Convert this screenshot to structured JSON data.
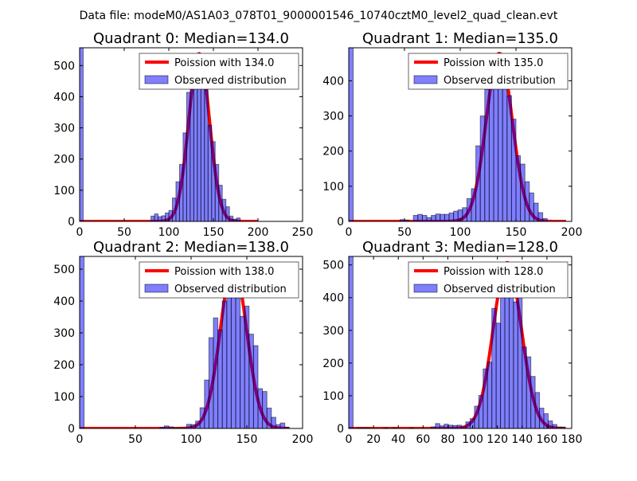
{
  "suptitle": "Data file: modeM0/AS1A03_078T01_9000001546_10740cztM0_level2_quad_clean.evt",
  "colors": {
    "bars": "#0000ff",
    "curve": "#ff0000"
  },
  "chart_data": [
    {
      "type": "bar",
      "title": "Quadrant 0: Median=134.0",
      "legend": [
        "Poission with 134.0",
        "Observed distribution"
      ],
      "legend_position": "top-right",
      "xlim": [
        0,
        250
      ],
      "ylim": [
        0,
        557
      ],
      "xticks": [
        0,
        50,
        100,
        150,
        200,
        250
      ],
      "yticks": [
        0,
        100,
        200,
        300,
        400,
        500
      ],
      "bin_width": 4,
      "bins": [
        [
          0,
          557
        ],
        [
          80,
          17
        ],
        [
          84,
          24
        ],
        [
          88,
          15
        ],
        [
          92,
          18
        ],
        [
          96,
          27
        ],
        [
          100,
          35
        ],
        [
          104,
          75
        ],
        [
          108,
          127
        ],
        [
          112,
          183
        ],
        [
          116,
          284
        ],
        [
          120,
          414
        ],
        [
          124,
          457
        ],
        [
          128,
          474
        ],
        [
          132,
          491
        ],
        [
          136,
          460
        ],
        [
          140,
          422
        ],
        [
          144,
          309
        ],
        [
          148,
          256
        ],
        [
          152,
          183
        ],
        [
          156,
          116
        ],
        [
          160,
          71
        ],
        [
          164,
          47
        ],
        [
          168,
          17
        ],
        [
          172,
          7
        ],
        [
          176,
          11
        ]
      ],
      "poisson": {
        "lambda": 134.0,
        "peak": 538,
        "x_range": [
          0,
          200
        ]
      }
    },
    {
      "type": "bar",
      "title": "Quadrant 1: Median=135.0",
      "legend": [
        "Poission with 135.0",
        "Observed distribution"
      ],
      "legend_position": "top-right",
      "xlim": [
        0,
        200
      ],
      "ylim": [
        0,
        494
      ],
      "xticks": [
        0,
        50,
        100,
        150,
        200
      ],
      "yticks": [
        0,
        100,
        200,
        300,
        400
      ],
      "bin_width": 4,
      "bins": [
        [
          0,
          494
        ],
        [
          46,
          5
        ],
        [
          50,
          4
        ],
        [
          58,
          17
        ],
        [
          62,
          20
        ],
        [
          66,
          17
        ],
        [
          70,
          11
        ],
        [
          74,
          17
        ],
        [
          78,
          21
        ],
        [
          82,
          20
        ],
        [
          86,
          20
        ],
        [
          90,
          24
        ],
        [
          94,
          29
        ],
        [
          98,
          33
        ],
        [
          102,
          39
        ],
        [
          106,
          65
        ],
        [
          110,
          93
        ],
        [
          114,
          215
        ],
        [
          118,
          300
        ],
        [
          122,
          375
        ],
        [
          126,
          440
        ],
        [
          130,
          470
        ],
        [
          134,
          478
        ],
        [
          138,
          440
        ],
        [
          142,
          358
        ],
        [
          146,
          291
        ],
        [
          150,
          187
        ],
        [
          154,
          163
        ],
        [
          158,
          113
        ],
        [
          162,
          81
        ],
        [
          166,
          52
        ],
        [
          170,
          25
        ],
        [
          174,
          8
        ]
      ],
      "poisson": {
        "lambda": 135.0,
        "peak": 478,
        "x_range": [
          0,
          195
        ]
      }
    },
    {
      "type": "bar",
      "title": "Quadrant 2: Median=138.0",
      "legend": [
        "Poission with 138.0",
        "Observed distribution"
      ],
      "legend_position": "top-right",
      "xlim": [
        0,
        200
      ],
      "ylim": [
        0,
        540
      ],
      "xticks": [
        0,
        50,
        100,
        150,
        200
      ],
      "yticks": [
        0,
        100,
        200,
        300,
        400,
        500
      ],
      "bin_width": 4,
      "bins": [
        [
          0,
          540
        ],
        [
          72,
          4
        ],
        [
          76,
          8
        ],
        [
          80,
          5
        ],
        [
          84,
          2
        ],
        [
          88,
          2
        ],
        [
          92,
          2
        ],
        [
          96,
          13
        ],
        [
          100,
          12
        ],
        [
          104,
          23
        ],
        [
          108,
          65
        ],
        [
          112,
          152
        ],
        [
          116,
          285
        ],
        [
          120,
          347
        ],
        [
          124,
          310
        ],
        [
          128,
          400
        ],
        [
          132,
          507
        ],
        [
          136,
          507
        ],
        [
          140,
          408
        ],
        [
          144,
          352
        ],
        [
          148,
          384
        ],
        [
          152,
          296
        ],
        [
          156,
          260
        ],
        [
          160,
          125
        ],
        [
          164,
          116
        ],
        [
          168,
          64
        ],
        [
          172,
          35
        ],
        [
          176,
          12
        ],
        [
          180,
          17
        ],
        [
          184,
          4
        ]
      ],
      "poisson": {
        "lambda": 138.0,
        "peak": 513,
        "x_range": [
          0,
          188
        ]
      }
    },
    {
      "type": "bar",
      "title": "Quadrant 3: Median=128.0",
      "legend": [
        "Poission with 128.0",
        "Observed distribution"
      ],
      "legend_position": "top-right",
      "xlim": [
        0,
        180
      ],
      "ylim": [
        0,
        526
      ],
      "xticks": [
        0,
        20,
        40,
        60,
        80,
        100,
        120,
        140,
        160,
        180
      ],
      "yticks": [
        0,
        100,
        200,
        300,
        400,
        500
      ],
      "bin_width": 3.5,
      "bins": [
        [
          0,
          526
        ],
        [
          7,
          2
        ],
        [
          10.5,
          2
        ],
        [
          14,
          2
        ],
        [
          28,
          2
        ],
        [
          35,
          2
        ],
        [
          49,
          2
        ],
        [
          66.5,
          5
        ],
        [
          70,
          15
        ],
        [
          73.5,
          8
        ],
        [
          77,
          13
        ],
        [
          80.5,
          10
        ],
        [
          84,
          9
        ],
        [
          87.5,
          10
        ],
        [
          91,
          5
        ],
        [
          94.5,
          20
        ],
        [
          98,
          30
        ],
        [
          101.5,
          68
        ],
        [
          105,
          101
        ],
        [
          108.5,
          182
        ],
        [
          112,
          203
        ],
        [
          115.5,
          367
        ],
        [
          119,
          322
        ],
        [
          122.5,
          407
        ],
        [
          126,
          500
        ],
        [
          129.5,
          500
        ],
        [
          133,
          387
        ],
        [
          136.5,
          407
        ],
        [
          140,
          249
        ],
        [
          143.5,
          219
        ],
        [
          147,
          159
        ],
        [
          150.5,
          110
        ],
        [
          154,
          62
        ],
        [
          157.5,
          45
        ],
        [
          161,
          23
        ],
        [
          164.5,
          12
        ],
        [
          168,
          4
        ],
        [
          171.5,
          4
        ]
      ],
      "poisson": {
        "lambda": 128.0,
        "peak": 507,
        "x_range": [
          0,
          175
        ]
      }
    }
  ]
}
